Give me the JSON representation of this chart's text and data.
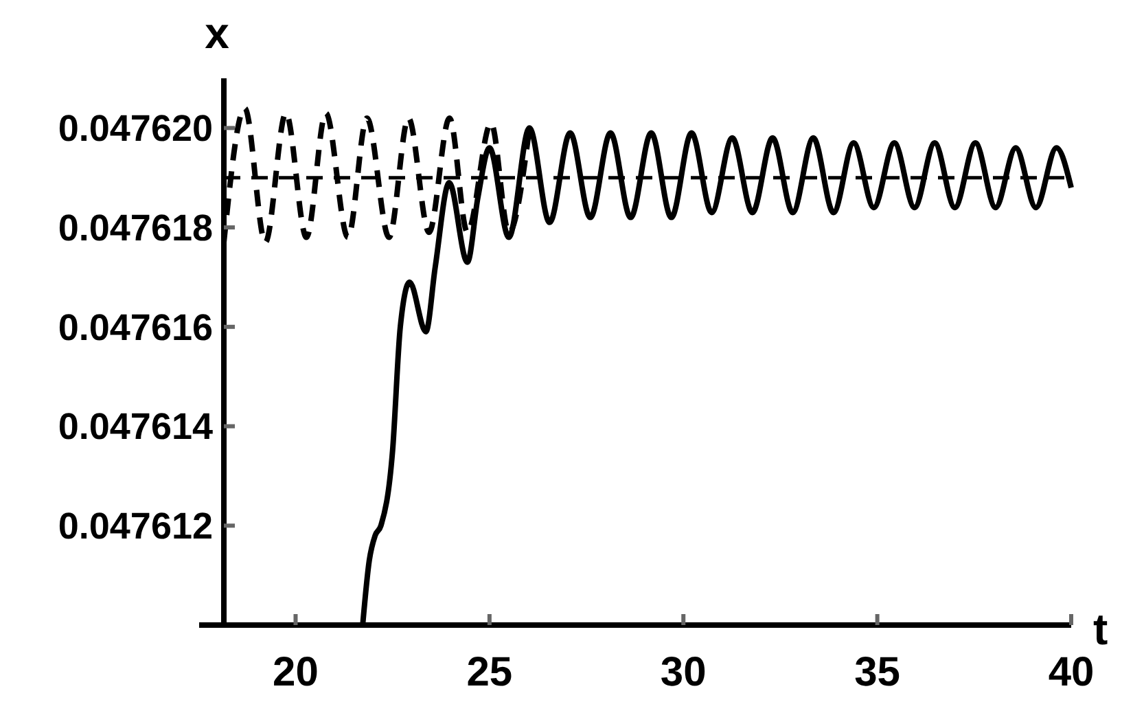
{
  "chart_data": {
    "type": "line",
    "xlabel": "t",
    "ylabel": "x",
    "xlim": [
      18.15,
      40
    ],
    "xticks": [
      20,
      25,
      30,
      35,
      40
    ],
    "ylim": [
      0.04761,
      0.047621
    ],
    "yticks": [
      {
        "value": 0.047612,
        "label": "0.047612"
      },
      {
        "value": 0.047614,
        "label": "0.047614"
      },
      {
        "value": 0.047616,
        "label": "0.047616"
      },
      {
        "value": 0.047618,
        "label": "0.047618"
      },
      {
        "value": 0.04762,
        "label": "0.047620"
      }
    ],
    "grid": false,
    "ref_lines": [
      {
        "axis": "y",
        "value": 0.047619,
        "line_style": "dashed",
        "color": "#000000"
      }
    ],
    "series": [
      {
        "color": "#000000",
        "line_style": "solid",
        "x": [
          21.73,
          21.9,
          22.05,
          22.2,
          22.5,
          22.7,
          22.94,
          23.36,
          23.6,
          23.96,
          24.43,
          24.7,
          25.0,
          25.5,
          26.03,
          26.55,
          27.08,
          27.6,
          28.12,
          28.64,
          29.17,
          29.69,
          30.21,
          30.73,
          31.26,
          31.78,
          32.3,
          32.82,
          33.35,
          33.87,
          34.39,
          34.91,
          35.44,
          35.96,
          36.48,
          37.0,
          37.53,
          38.05,
          38.57,
          39.09,
          39.62,
          40
        ],
        "values": [
          0.04761,
          0.0476113,
          0.0476118,
          0.047612,
          0.0476135,
          0.047616,
          0.0476169,
          0.0476159,
          0.0476172,
          0.0476189,
          0.0476173,
          0.0476186,
          0.0476196,
          0.0476178,
          0.04762,
          0.0476181,
          0.0476199,
          0.0476182,
          0.0476199,
          0.0476182,
          0.0476199,
          0.0476182,
          0.0476199,
          0.0476183,
          0.0476198,
          0.0476183,
          0.0476198,
          0.0476183,
          0.0476198,
          0.0476183,
          0.0476197,
          0.0476184,
          0.0476197,
          0.0476184,
          0.0476197,
          0.0476184,
          0.0476197,
          0.0476184,
          0.0476196,
          0.0476184,
          0.0476196,
          0.0476188
        ]
      },
      {
        "color": "#000000",
        "line_style": "dashed",
        "x": [
          18.15,
          18.69,
          19.22,
          19.75,
          20.28,
          20.78,
          21.35,
          21.84,
          22.41,
          22.91,
          23.44,
          23.97,
          24.43,
          25.04,
          25.5,
          26.03
        ],
        "values": [
          0.0476177,
          0.0476204,
          0.0476177,
          0.0476203,
          0.0476178,
          0.0476203,
          0.0476178,
          0.0476202,
          0.0476178,
          0.0476202,
          0.0476179,
          0.0476202,
          0.0476179,
          0.0476201,
          0.0476179,
          0.04762
        ]
      }
    ]
  }
}
